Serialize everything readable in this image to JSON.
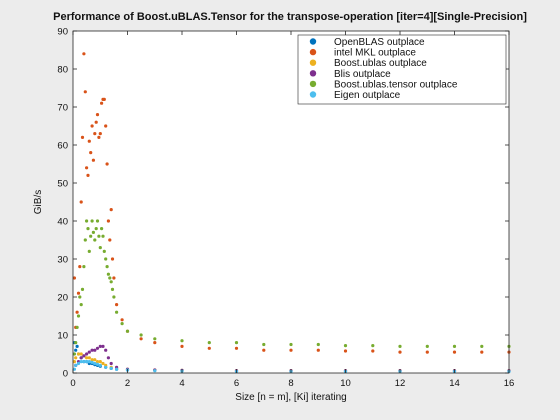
{
  "chart_data": {
    "type": "scatter",
    "title": "Performance of Boost.uBLAS.Tensor for the transpose-operation [iter=4][Single-Precision]",
    "xlabel": "Size [n = m], [Ki] iterating",
    "ylabel": "GiB/s",
    "xlim": [
      0,
      16
    ],
    "ylim": [
      0,
      90
    ],
    "x_ticks": [
      "0",
      "2",
      "4",
      "6",
      "8",
      "10",
      "12",
      "14",
      "16"
    ],
    "y_ticks": [
      "0",
      "10",
      "20",
      "30",
      "40",
      "50",
      "60",
      "70",
      "80",
      "90"
    ],
    "grid": false,
    "legend_position": "top-right",
    "series": [
      {
        "name": "OpenBLAS outplace",
        "color": "#0072bd",
        "x": [
          0.05,
          0.1,
          0.15,
          0.2,
          0.3,
          0.4,
          0.5,
          0.6,
          0.7,
          0.8,
          0.9,
          1.0,
          1.2,
          1.4,
          1.6,
          2,
          3,
          4,
          6,
          8,
          10,
          12,
          14,
          16
        ],
        "y": [
          8,
          6,
          7,
          5,
          4,
          3,
          3,
          2.5,
          2.5,
          2.2,
          2,
          1.8,
          1.5,
          1.2,
          1,
          0.8,
          0.7,
          0.6,
          0.5,
          0.5,
          0.5,
          0.5,
          0.5,
          0.5
        ]
      },
      {
        "name": "intel MKL outplace",
        "color": "#d95319",
        "x": [
          0.05,
          0.1,
          0.15,
          0.2,
          0.25,
          0.3,
          0.35,
          0.4,
          0.45,
          0.5,
          0.55,
          0.6,
          0.65,
          0.7,
          0.75,
          0.8,
          0.85,
          0.9,
          0.95,
          1.0,
          1.05,
          1.1,
          1.15,
          1.2,
          1.25,
          1.3,
          1.35,
          1.4,
          1.45,
          1.5,
          1.6,
          1.8,
          2.0,
          2.5,
          3,
          4,
          5,
          6,
          7,
          8,
          9,
          10,
          11,
          12,
          13,
          14,
          15,
          16
        ],
        "y": [
          25,
          12,
          16,
          21,
          28,
          45,
          62,
          84,
          74,
          54,
          52,
          61,
          58,
          65,
          56,
          63,
          66,
          68,
          62,
          63,
          71,
          72,
          72,
          65,
          55,
          40,
          35,
          43,
          30,
          25,
          18,
          14,
          11,
          9,
          8,
          7,
          6.5,
          6.5,
          6,
          6,
          6,
          5.8,
          5.8,
          5.5,
          5.5,
          5.5,
          5.5,
          5.5
        ]
      },
      {
        "name": "Boost.ublas outplace",
        "color": "#edb120",
        "x": [
          0.05,
          0.1,
          0.2,
          0.3,
          0.4,
          0.5,
          0.6,
          0.7,
          0.8,
          0.9,
          1.0,
          1.1,
          1.2,
          1.4,
          1.6,
          2,
          3,
          4,
          6,
          8,
          10,
          12,
          14,
          16
        ],
        "y": [
          3,
          4,
          5,
          5,
          4.5,
          4,
          4,
          3.5,
          3.5,
          3,
          3,
          2.5,
          2,
          1.5,
          1.2,
          1,
          0.8,
          0.7,
          0.6,
          0.6,
          0.6,
          0.6,
          0.6,
          0.6
        ]
      },
      {
        "name": "Blis outplace",
        "color": "#7e2f8e",
        "x": [
          0.1,
          0.2,
          0.3,
          0.4,
          0.5,
          0.6,
          0.7,
          0.8,
          0.9,
          1.0,
          1.1,
          1.2,
          1.3,
          1.4,
          1.6,
          2,
          3,
          4,
          6,
          8,
          10,
          12,
          14,
          16
        ],
        "y": [
          2,
          3,
          4,
          4.5,
          5,
          5.5,
          6,
          6,
          6.5,
          7,
          7,
          6,
          4,
          2.5,
          1.5,
          1,
          0.8,
          0.7,
          0.6,
          0.6,
          0.6,
          0.6,
          0.6,
          0.6
        ]
      },
      {
        "name": "Boost.ublas.tensor outplace",
        "color": "#77ac30",
        "x": [
          0.05,
          0.1,
          0.15,
          0.2,
          0.25,
          0.3,
          0.35,
          0.4,
          0.45,
          0.5,
          0.55,
          0.6,
          0.65,
          0.7,
          0.75,
          0.8,
          0.85,
          0.9,
          0.95,
          1.0,
          1.05,
          1.1,
          1.15,
          1.2,
          1.25,
          1.3,
          1.35,
          1.4,
          1.45,
          1.5,
          1.6,
          1.8,
          2.0,
          2.5,
          3,
          4,
          5,
          6,
          7,
          8,
          9,
          10,
          11,
          12,
          13,
          14,
          15,
          16
        ],
        "y": [
          5,
          8,
          12,
          15,
          20,
          18,
          22,
          28,
          35,
          40,
          38,
          32,
          36,
          40,
          37,
          35,
          38,
          40,
          36,
          33,
          38,
          36,
          32,
          30,
          28,
          26,
          25,
          24,
          22,
          20,
          16,
          13,
          11,
          10,
          9,
          8.5,
          8,
          8,
          7.5,
          7.5,
          7.5,
          7.2,
          7.2,
          7,
          7,
          7,
          7,
          7
        ]
      },
      {
        "name": "Eigen outplace",
        "color": "#4dbeee",
        "x": [
          0.05,
          0.1,
          0.2,
          0.3,
          0.4,
          0.5,
          0.6,
          0.7,
          0.8,
          0.9,
          1.0,
          1.2,
          1.4,
          1.6,
          2,
          3,
          4,
          6,
          8,
          10,
          12,
          14,
          16
        ],
        "y": [
          1,
          2,
          2.5,
          3,
          3,
          3,
          3,
          2.8,
          2.5,
          2.3,
          2,
          1.5,
          1.2,
          1,
          0.8,
          0.6,
          0.5,
          0.4,
          0.4,
          0.4,
          0.4,
          0.4,
          0.4
        ]
      }
    ]
  }
}
